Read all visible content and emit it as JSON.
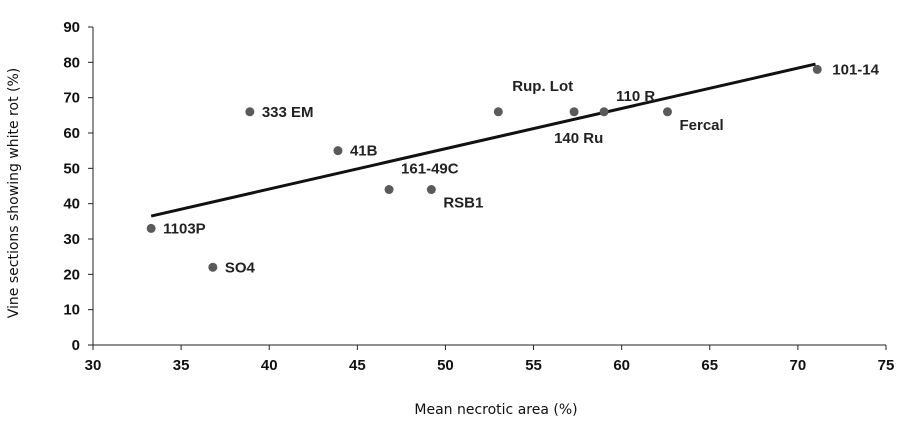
{
  "chart_data": {
    "type": "scatter",
    "title": "",
    "xlabel": "Mean necrotic area (%)",
    "ylabel": "Vine sections showing white rot (%)",
    "xlim": [
      30,
      75
    ],
    "ylim": [
      0,
      90
    ],
    "xticks": [
      30,
      35,
      40,
      45,
      50,
      55,
      60,
      65,
      70,
      75
    ],
    "yticks": [
      0,
      10,
      20,
      30,
      40,
      50,
      60,
      70,
      80,
      90
    ],
    "grid": false,
    "points": [
      {
        "label": "1103P",
        "x": 33.3,
        "y": 33
      },
      {
        "label": "SO4",
        "x": 36.8,
        "y": 22
      },
      {
        "label": "333 EM",
        "x": 38.9,
        "y": 66
      },
      {
        "label": "41B",
        "x": 43.9,
        "y": 55
      },
      {
        "label": "161-49C",
        "x": 46.8,
        "y": 44
      },
      {
        "label": "RSB1",
        "x": 49.2,
        "y": 44
      },
      {
        "label": "Rup. Lot",
        "x": 53.0,
        "y": 66
      },
      {
        "label": "140 Ru",
        "x": 57.3,
        "y": 66
      },
      {
        "label": "110 R",
        "x": 59.0,
        "y": 66
      },
      {
        "label": "Fercal",
        "x": 62.6,
        "y": 66
      },
      {
        "label": "101-14",
        "x": 71.1,
        "y": 78
      }
    ],
    "trendline": {
      "x": [
        33.3,
        71.0
      ],
      "y": [
        36.5,
        79.5
      ]
    },
    "colors": {
      "points": "#5a5a5a",
      "trendline": "#111111",
      "axis": "#222222"
    }
  }
}
